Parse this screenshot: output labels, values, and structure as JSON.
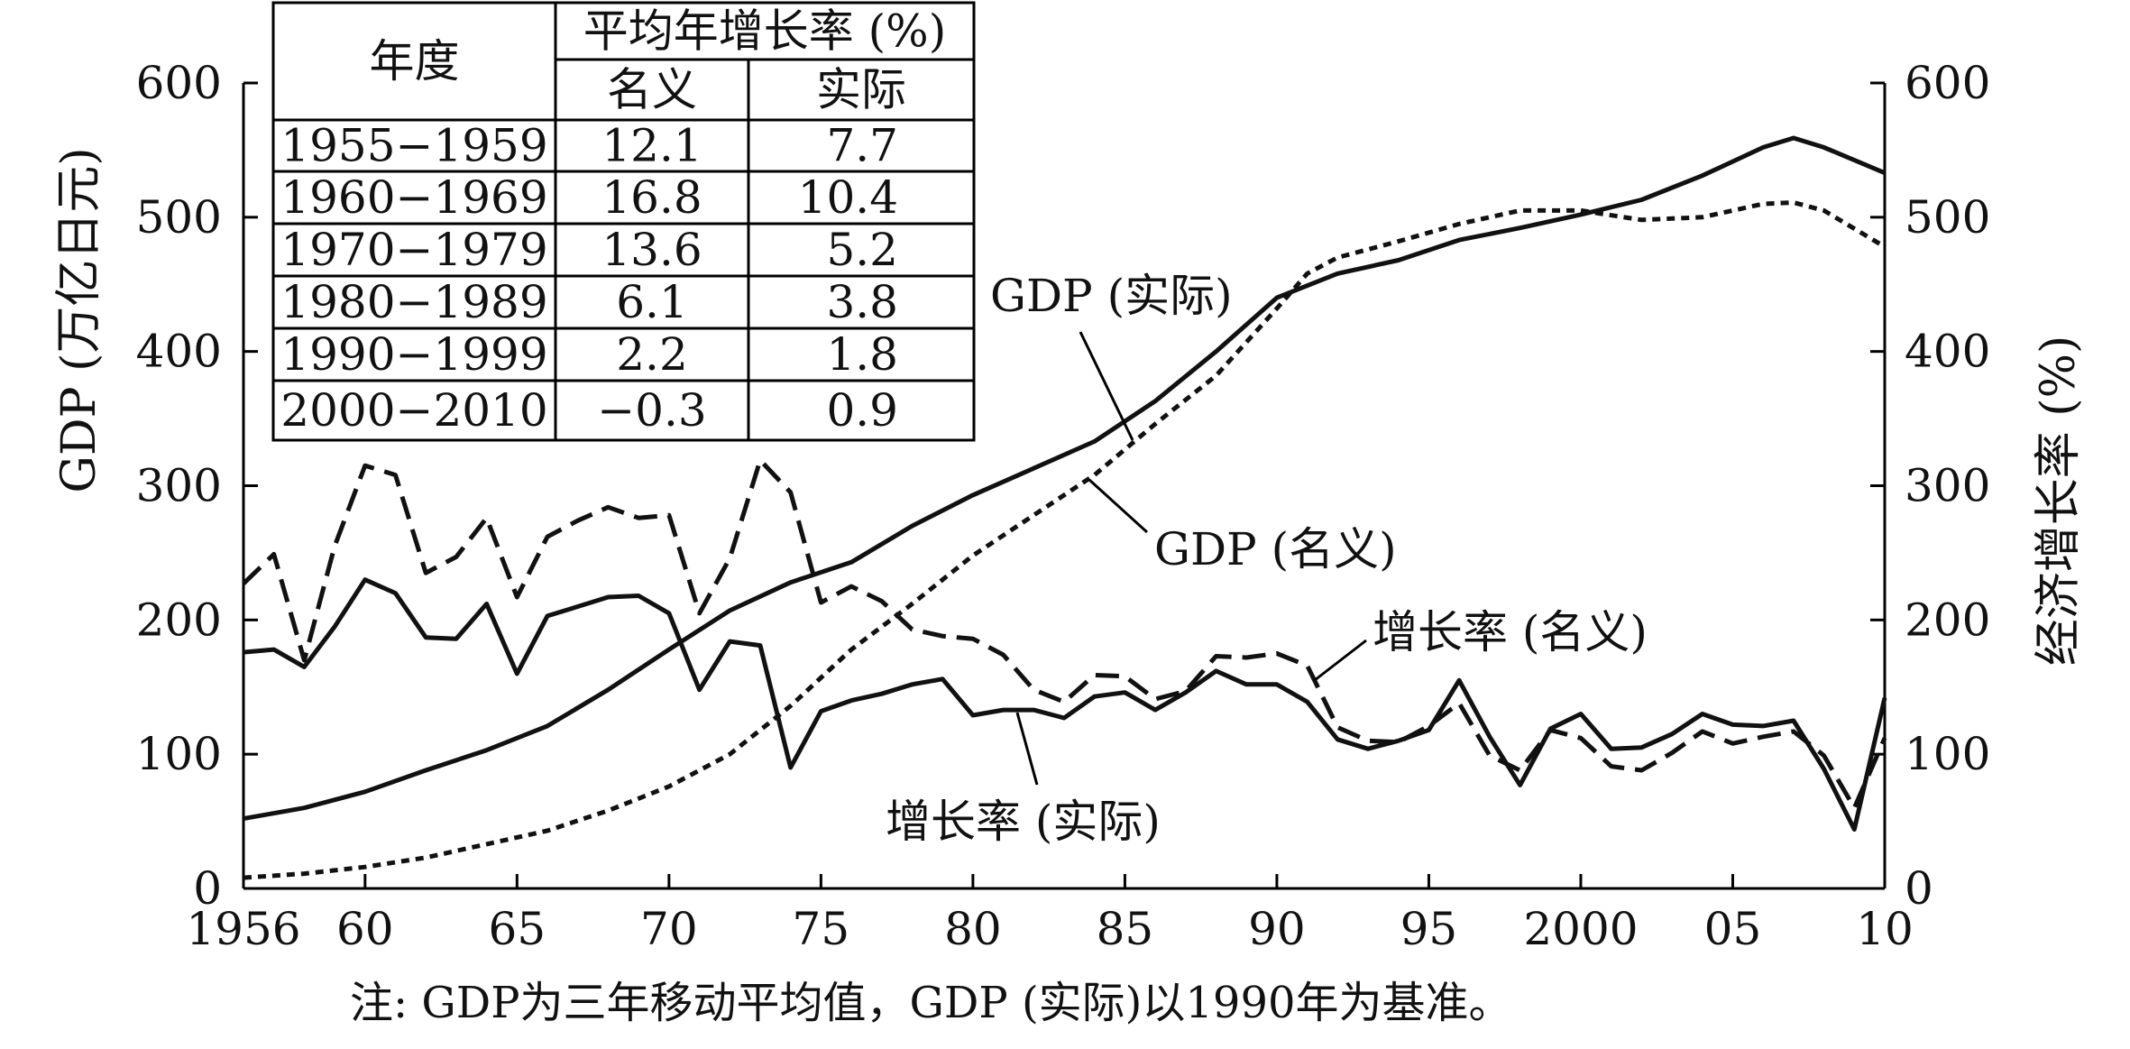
{
  "chart_data": {
    "type": "line",
    "ylabel_left": "GDP (万亿日元)",
    "ylabel_right": "经济增长率 (%)",
    "note": "注: GDP为三年移动平均值，GDP (实际)以1990年为基准。",
    "xlim": [
      1956,
      2010
    ],
    "ylim": [
      0,
      600
    ],
    "y2lim": [
      0,
      600
    ],
    "x_tick_values": [
      1956,
      1960,
      1965,
      1970,
      1975,
      1980,
      1985,
      1990,
      1995,
      2000,
      2005,
      2010
    ],
    "x_tick_labels": [
      "1956",
      "60",
      "65",
      "70",
      "75",
      "80",
      "85",
      "90",
      "95",
      "2000",
      "05",
      "10"
    ],
    "y_ticks": [
      0,
      100,
      200,
      300,
      400,
      500,
      600
    ],
    "y_tick_labels": [
      "0",
      "100",
      "200",
      "300",
      "400",
      "500",
      "600"
    ],
    "y2_ticks": [
      0,
      100,
      200,
      300,
      400,
      500,
      600
    ],
    "y2_tick_labels": [
      "0",
      "100",
      "200",
      "300",
      "400",
      "500",
      "600"
    ],
    "grid": false,
    "series": [
      {
        "name": "GDP (实际)",
        "axis": "left",
        "style": "solid",
        "x": [
          1956,
          1958,
          1960,
          1962,
          1964,
          1966,
          1968,
          1970,
          1972,
          1974,
          1976,
          1978,
          1980,
          1982,
          1984,
          1986,
          1988,
          1990,
          1992,
          1994,
          1996,
          1998,
          2000,
          2002,
          2004,
          2006,
          2007,
          2008,
          2010
        ],
        "y": [
          52,
          60,
          72,
          88,
          103,
          121,
          148,
          178,
          207,
          228,
          243,
          270,
          293,
          313,
          333,
          363,
          400,
          440,
          458,
          468,
          483,
          492,
          502,
          513,
          531,
          552,
          559,
          552,
          533
        ]
      },
      {
        "name": "GDP (名义)",
        "axis": "left",
        "style": "dotted",
        "x": [
          1956,
          1958,
          1960,
          1962,
          1964,
          1966,
          1968,
          1970,
          1972,
          1974,
          1976,
          1978,
          1980,
          1982,
          1984,
          1986,
          1988,
          1990,
          1991,
          1992,
          1994,
          1996,
          1998,
          2000,
          2002,
          2004,
          2006,
          2007,
          2008,
          2010
        ],
        "y": [
          8,
          11,
          16,
          23,
          33,
          43,
          58,
          76,
          100,
          136,
          178,
          212,
          248,
          278,
          308,
          346,
          382,
          432,
          458,
          470,
          482,
          495,
          505,
          505,
          498,
          500,
          510,
          511,
          505,
          478
        ]
      },
      {
        "name": "增长率 (名义)",
        "axis": "right",
        "style": "dashed",
        "x": [
          1956,
          1957,
          1958,
          1959,
          1960,
          1961,
          1962,
          1963,
          1964,
          1965,
          1966,
          1967,
          1968,
          1969,
          1970,
          1971,
          1972,
          1973,
          1974,
          1975,
          1976,
          1977,
          1978,
          1979,
          1980,
          1981,
          1982,
          1983,
          1984,
          1985,
          1986,
          1987,
          1988,
          1989,
          1990,
          1991,
          1992,
          1993,
          1994,
          1995,
          1996,
          1997,
          1998,
          1999,
          2000,
          2001,
          2002,
          2003,
          2004,
          2005,
          2006,
          2007,
          2008,
          2009,
          2010
        ],
        "y": [
          227,
          249,
          170,
          255,
          315,
          308,
          235,
          247,
          276,
          217,
          262,
          274,
          284,
          276,
          278,
          205,
          246,
          319,
          295,
          213,
          225,
          214,
          193,
          188,
          186,
          174,
          148,
          139,
          159,
          158,
          141,
          147,
          173,
          172,
          175,
          166,
          120,
          110,
          109,
          121,
          138,
          99,
          88,
          118,
          112,
          91,
          88,
          101,
          117,
          108,
          113,
          117,
          99,
          60,
          112
        ]
      },
      {
        "name": "增长率 (实际)",
        "axis": "right",
        "style": "solid",
        "x": [
          1956,
          1957,
          1958,
          1959,
          1960,
          1961,
          1962,
          1963,
          1964,
          1965,
          1966,
          1967,
          1968,
          1969,
          1970,
          1971,
          1972,
          1973,
          1974,
          1975,
          1976,
          1977,
          1978,
          1979,
          1980,
          1981,
          1982,
          1983,
          1984,
          1985,
          1986,
          1987,
          1988,
          1989,
          1990,
          1991,
          1992,
          1993,
          1994,
          1995,
          1996,
          1997,
          1998,
          1999,
          2000,
          2001,
          2002,
          2003,
          2004,
          2005,
          2006,
          2007,
          2008,
          2009,
          2010
        ],
        "y": [
          176,
          178,
          165,
          195,
          230,
          220,
          187,
          186,
          212,
          160,
          203,
          210,
          217,
          218,
          205,
          148,
          184,
          181,
          90,
          132,
          140,
          145,
          152,
          156,
          129,
          133,
          133,
          127,
          143,
          146,
          133,
          146,
          162,
          152,
          152,
          139,
          111,
          104,
          110,
          118,
          155,
          113,
          77,
          119,
          130,
          104,
          105,
          115,
          130,
          122,
          121,
          125,
          89,
          44,
          142
        ]
      }
    ],
    "annotations": [
      {
        "text": "GDP (实际)",
        "series": "GDP (实际)"
      },
      {
        "text": "GDP (名义)",
        "series": "GDP (名义)"
      },
      {
        "text": "增长率 (名义)",
        "series": "增长率 (名义)"
      },
      {
        "text": "增长率 (实际)",
        "series": "增长率 (实际)"
      }
    ],
    "table": {
      "col_year": "年度",
      "group_header": "平均年增长率 (%)",
      "sub_headers": [
        "名义",
        "实际"
      ],
      "rows": [
        [
          "1955−1959",
          "12.1",
          "7.7"
        ],
        [
          "1960−1969",
          "16.8",
          "10.4"
        ],
        [
          "1970−1979",
          "13.6",
          "5.2"
        ],
        [
          "1980−1989",
          "6.1",
          "3.8"
        ],
        [
          "1990−1999",
          "2.2",
          "1.8"
        ],
        [
          "2000−2010",
          "−0.3",
          "0.9"
        ]
      ]
    }
  }
}
